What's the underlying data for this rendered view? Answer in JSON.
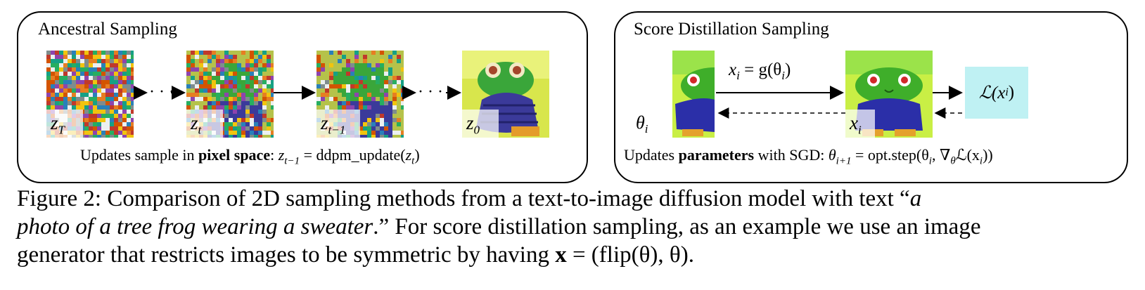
{
  "left_panel": {
    "title": "Ancestral Sampling",
    "labels": {
      "zT": "z",
      "zT_sub": "T",
      "zt": "z",
      "zt_sub": "t",
      "zt1": "z",
      "zt1_sub": "t−1",
      "z0": "z",
      "z0_sub": "0"
    },
    "dots": "· · ·",
    "bottom": {
      "prefix": "Updates sample in ",
      "bold": "pixel space",
      "suffix": ":  ",
      "formula": "z",
      "formula_sub": "t−1",
      "formula_rest": " = ddpm_update(",
      "formula_arg": "z",
      "formula_arg_sub": "t",
      "formula_end": ")"
    }
  },
  "right_panel": {
    "title": "Score Distillation Sampling",
    "theta_label": "θ",
    "theta_sub": "i",
    "x_label": "x",
    "x_sub": "i",
    "mapping": "x",
    "mapping_sub": "i",
    "mapping_rest": " = g(θ",
    "mapping_rest_sub": "i",
    "mapping_end": ")",
    "loss": "ℒ(x",
    "loss_sub": "i",
    "loss_end": ")",
    "bottom": {
      "prefix": "Updates ",
      "bold": "parameters",
      "suffix": " with SGD:  ",
      "formula": "θ",
      "formula_sub": "i+1",
      "formula_rest": " = opt.step(θ",
      "formula_rest_sub": "i",
      "formula_rest2": ", ∇",
      "formula_rest2_sub": "θ",
      "formula_end": "ℒ(x",
      "formula_end_sub": "i",
      "formula_close": "))"
    }
  },
  "caption": {
    "line1_a": "Figure 2: Comparison of 2D sampling methods from a text-to-image diffusion model with text “",
    "line1_b": "a",
    "line2_a": "photo of a tree frog wearing a sweater",
    "line2_b": ".” For score distillation sampling, as an example we use an image",
    "line3_a": "generator that restricts images to be symmetric by having ",
    "line3_b": "x",
    "line3_c": " = (flip(θ), θ)."
  },
  "colors": {
    "loss_box": "#bff1f3",
    "frog_green": "#3fae2a",
    "sweater": "#2b2fa8",
    "background_green": "#c9ef45"
  }
}
